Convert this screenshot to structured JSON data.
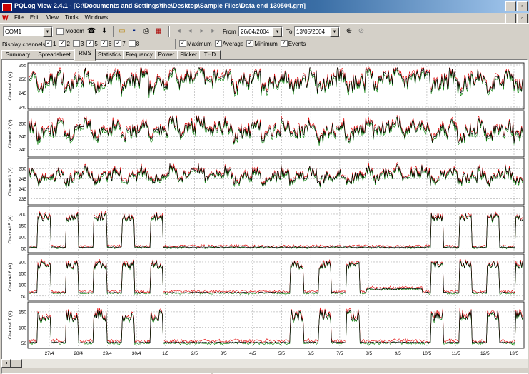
{
  "window": {
    "title": "PQLog View 2.4.1 - [C:\\Documents and Settings\\fhe\\Desktop\\Sample Files\\Data end 130504.grn]",
    "controls": [
      "_",
      "▫",
      "×"
    ],
    "mdi_controls": [
      "_",
      "▫",
      "×"
    ]
  },
  "menu": [
    "File",
    "Edit",
    "View",
    "Tools",
    "Windows"
  ],
  "toolbar": {
    "port": "COM1",
    "modem_label": "Modem",
    "from_label": "From",
    "from_date": "26/04/2004",
    "to_label": "To",
    "to_date": "13/05/2004",
    "icons": [
      "connect-icon",
      "download-icon",
      "open-icon",
      "save-icon",
      "print-icon",
      "calendar-icon",
      "first-icon",
      "prev-icon",
      "next-icon",
      "last-icon",
      "zoom-in-icon",
      "zoom-out-icon"
    ]
  },
  "options": {
    "channels_label": "Display channels:",
    "channels": [
      {
        "label": "1",
        "checked": true
      },
      {
        "label": "2",
        "checked": true
      },
      {
        "label": "3",
        "checked": false
      },
      {
        "label": "5",
        "checked": true
      },
      {
        "label": "6",
        "checked": true
      },
      {
        "label": "7",
        "checked": true
      },
      {
        "label": "8",
        "checked": false
      }
    ],
    "toggles": [
      {
        "label": "Maximum",
        "checked": true
      },
      {
        "label": "Average",
        "checked": true
      },
      {
        "label": "Minimum",
        "checked": true
      },
      {
        "label": "Events",
        "checked": true
      }
    ]
  },
  "tabs": [
    "Summary",
    "Spreadsheet",
    "RMS",
    "Statistics",
    "Frequency",
    "Power",
    "Flicker",
    "THD"
  ],
  "active_tab": "RMS",
  "chart_data": {
    "type": "line",
    "x_ticks": [
      "27/4",
      "28/4",
      "29/4",
      "30/4",
      "1/5",
      "2/5",
      "3/5",
      "4/5",
      "5/5",
      "6/5",
      "7/5",
      "8/5",
      "9/5",
      "10/5",
      "11/5",
      "12/5",
      "13/5"
    ],
    "series_colors": {
      "maximum": "#e00000",
      "average": "#000000",
      "minimum": "#008000"
    },
    "panels": [
      {
        "label": "Channel 1 (V)",
        "yticks": [
          "255",
          "250",
          "245",
          "240"
        ],
        "ymin": 240,
        "ymax": 255,
        "kind": "voltage",
        "base": 248
      },
      {
        "label": "Channel 2 (V)",
        "yticks": [
          "250",
          "245",
          "240"
        ],
        "ymin": 238,
        "ymax": 254,
        "kind": "voltage",
        "base": 246
      },
      {
        "label": "Channel 3 (V)",
        "yticks": [
          "250",
          "245",
          "240",
          "235"
        ],
        "ymin": 233,
        "ymax": 254,
        "kind": "voltage",
        "base": 245
      },
      {
        "label": "Channel 5 (A)",
        "yticks": [
          "200",
          "150",
          "100",
          "50"
        ],
        "ymin": 40,
        "ymax": 225,
        "kind": "current",
        "base": 55
      },
      {
        "label": "Channel 6 (A)",
        "yticks": [
          "200",
          "150",
          "100",
          "50"
        ],
        "ymin": 40,
        "ymax": 225,
        "kind": "current",
        "base": 65
      },
      {
        "label": "Channel 7 (A)",
        "yticks": [
          "150",
          "100",
          "50"
        ],
        "ymin": 40,
        "ymax": 175,
        "kind": "current",
        "base": 52
      }
    ]
  }
}
